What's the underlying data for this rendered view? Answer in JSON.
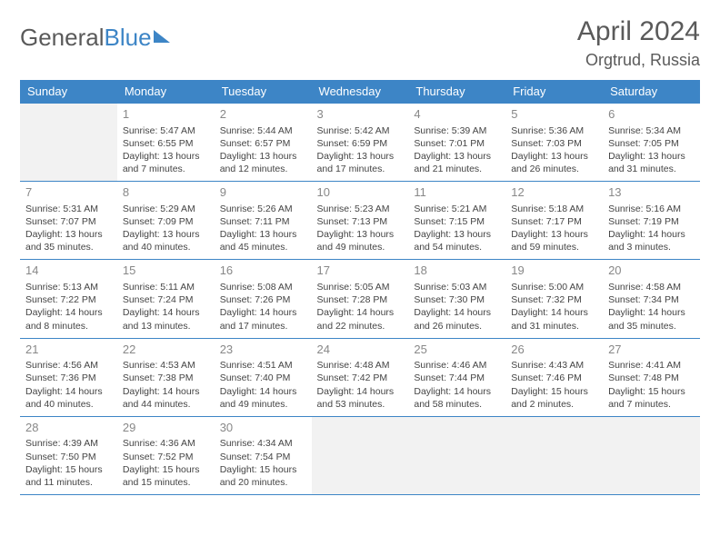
{
  "logo": {
    "part1": "General",
    "part2": "Blue"
  },
  "title": "April 2024",
  "location": "Orgtrud, Russia",
  "day_headers": [
    "Sunday",
    "Monday",
    "Tuesday",
    "Wednesday",
    "Thursday",
    "Friday",
    "Saturday"
  ],
  "colors": {
    "header_bg": "#3d85c6",
    "header_text": "#ffffff",
    "row_border": "#3d85c6",
    "empty_bg": "#f2f2f2",
    "daynum": "#888888",
    "text": "#444444",
    "title_text": "#5a5a5a"
  },
  "layout": {
    "columns": 7,
    "rows": 5,
    "col_width_pct": 14.28
  },
  "weeks": [
    [
      {
        "empty": true
      },
      {
        "day": "1",
        "sunrise": "5:47 AM",
        "sunset": "6:55 PM",
        "daylight": "13 hours and 7 minutes."
      },
      {
        "day": "2",
        "sunrise": "5:44 AM",
        "sunset": "6:57 PM",
        "daylight": "13 hours and 12 minutes."
      },
      {
        "day": "3",
        "sunrise": "5:42 AM",
        "sunset": "6:59 PM",
        "daylight": "13 hours and 17 minutes."
      },
      {
        "day": "4",
        "sunrise": "5:39 AM",
        "sunset": "7:01 PM",
        "daylight": "13 hours and 21 minutes."
      },
      {
        "day": "5",
        "sunrise": "5:36 AM",
        "sunset": "7:03 PM",
        "daylight": "13 hours and 26 minutes."
      },
      {
        "day": "6",
        "sunrise": "5:34 AM",
        "sunset": "7:05 PM",
        "daylight": "13 hours and 31 minutes."
      }
    ],
    [
      {
        "day": "7",
        "sunrise": "5:31 AM",
        "sunset": "7:07 PM",
        "daylight": "13 hours and 35 minutes."
      },
      {
        "day": "8",
        "sunrise": "5:29 AM",
        "sunset": "7:09 PM",
        "daylight": "13 hours and 40 minutes."
      },
      {
        "day": "9",
        "sunrise": "5:26 AM",
        "sunset": "7:11 PM",
        "daylight": "13 hours and 45 minutes."
      },
      {
        "day": "10",
        "sunrise": "5:23 AM",
        "sunset": "7:13 PM",
        "daylight": "13 hours and 49 minutes."
      },
      {
        "day": "11",
        "sunrise": "5:21 AM",
        "sunset": "7:15 PM",
        "daylight": "13 hours and 54 minutes."
      },
      {
        "day": "12",
        "sunrise": "5:18 AM",
        "sunset": "7:17 PM",
        "daylight": "13 hours and 59 minutes."
      },
      {
        "day": "13",
        "sunrise": "5:16 AM",
        "sunset": "7:19 PM",
        "daylight": "14 hours and 3 minutes."
      }
    ],
    [
      {
        "day": "14",
        "sunrise": "5:13 AM",
        "sunset": "7:22 PM",
        "daylight": "14 hours and 8 minutes."
      },
      {
        "day": "15",
        "sunrise": "5:11 AM",
        "sunset": "7:24 PM",
        "daylight": "14 hours and 13 minutes."
      },
      {
        "day": "16",
        "sunrise": "5:08 AM",
        "sunset": "7:26 PM",
        "daylight": "14 hours and 17 minutes."
      },
      {
        "day": "17",
        "sunrise": "5:05 AM",
        "sunset": "7:28 PM",
        "daylight": "14 hours and 22 minutes."
      },
      {
        "day": "18",
        "sunrise": "5:03 AM",
        "sunset": "7:30 PM",
        "daylight": "14 hours and 26 minutes."
      },
      {
        "day": "19",
        "sunrise": "5:00 AM",
        "sunset": "7:32 PM",
        "daylight": "14 hours and 31 minutes."
      },
      {
        "day": "20",
        "sunrise": "4:58 AM",
        "sunset": "7:34 PM",
        "daylight": "14 hours and 35 minutes."
      }
    ],
    [
      {
        "day": "21",
        "sunrise": "4:56 AM",
        "sunset": "7:36 PM",
        "daylight": "14 hours and 40 minutes."
      },
      {
        "day": "22",
        "sunrise": "4:53 AM",
        "sunset": "7:38 PM",
        "daylight": "14 hours and 44 minutes."
      },
      {
        "day": "23",
        "sunrise": "4:51 AM",
        "sunset": "7:40 PM",
        "daylight": "14 hours and 49 minutes."
      },
      {
        "day": "24",
        "sunrise": "4:48 AM",
        "sunset": "7:42 PM",
        "daylight": "14 hours and 53 minutes."
      },
      {
        "day": "25",
        "sunrise": "4:46 AM",
        "sunset": "7:44 PM",
        "daylight": "14 hours and 58 minutes."
      },
      {
        "day": "26",
        "sunrise": "4:43 AM",
        "sunset": "7:46 PM",
        "daylight": "15 hours and 2 minutes."
      },
      {
        "day": "27",
        "sunrise": "4:41 AM",
        "sunset": "7:48 PM",
        "daylight": "15 hours and 7 minutes."
      }
    ],
    [
      {
        "day": "28",
        "sunrise": "4:39 AM",
        "sunset": "7:50 PM",
        "daylight": "15 hours and 11 minutes."
      },
      {
        "day": "29",
        "sunrise": "4:36 AM",
        "sunset": "7:52 PM",
        "daylight": "15 hours and 15 minutes."
      },
      {
        "day": "30",
        "sunrise": "4:34 AM",
        "sunset": "7:54 PM",
        "daylight": "15 hours and 20 minutes."
      },
      {
        "empty": true
      },
      {
        "empty": true
      },
      {
        "empty": true
      },
      {
        "empty": true
      }
    ]
  ],
  "labels": {
    "sunrise_prefix": "Sunrise: ",
    "sunset_prefix": "Sunset: ",
    "daylight_prefix": "Daylight: "
  }
}
